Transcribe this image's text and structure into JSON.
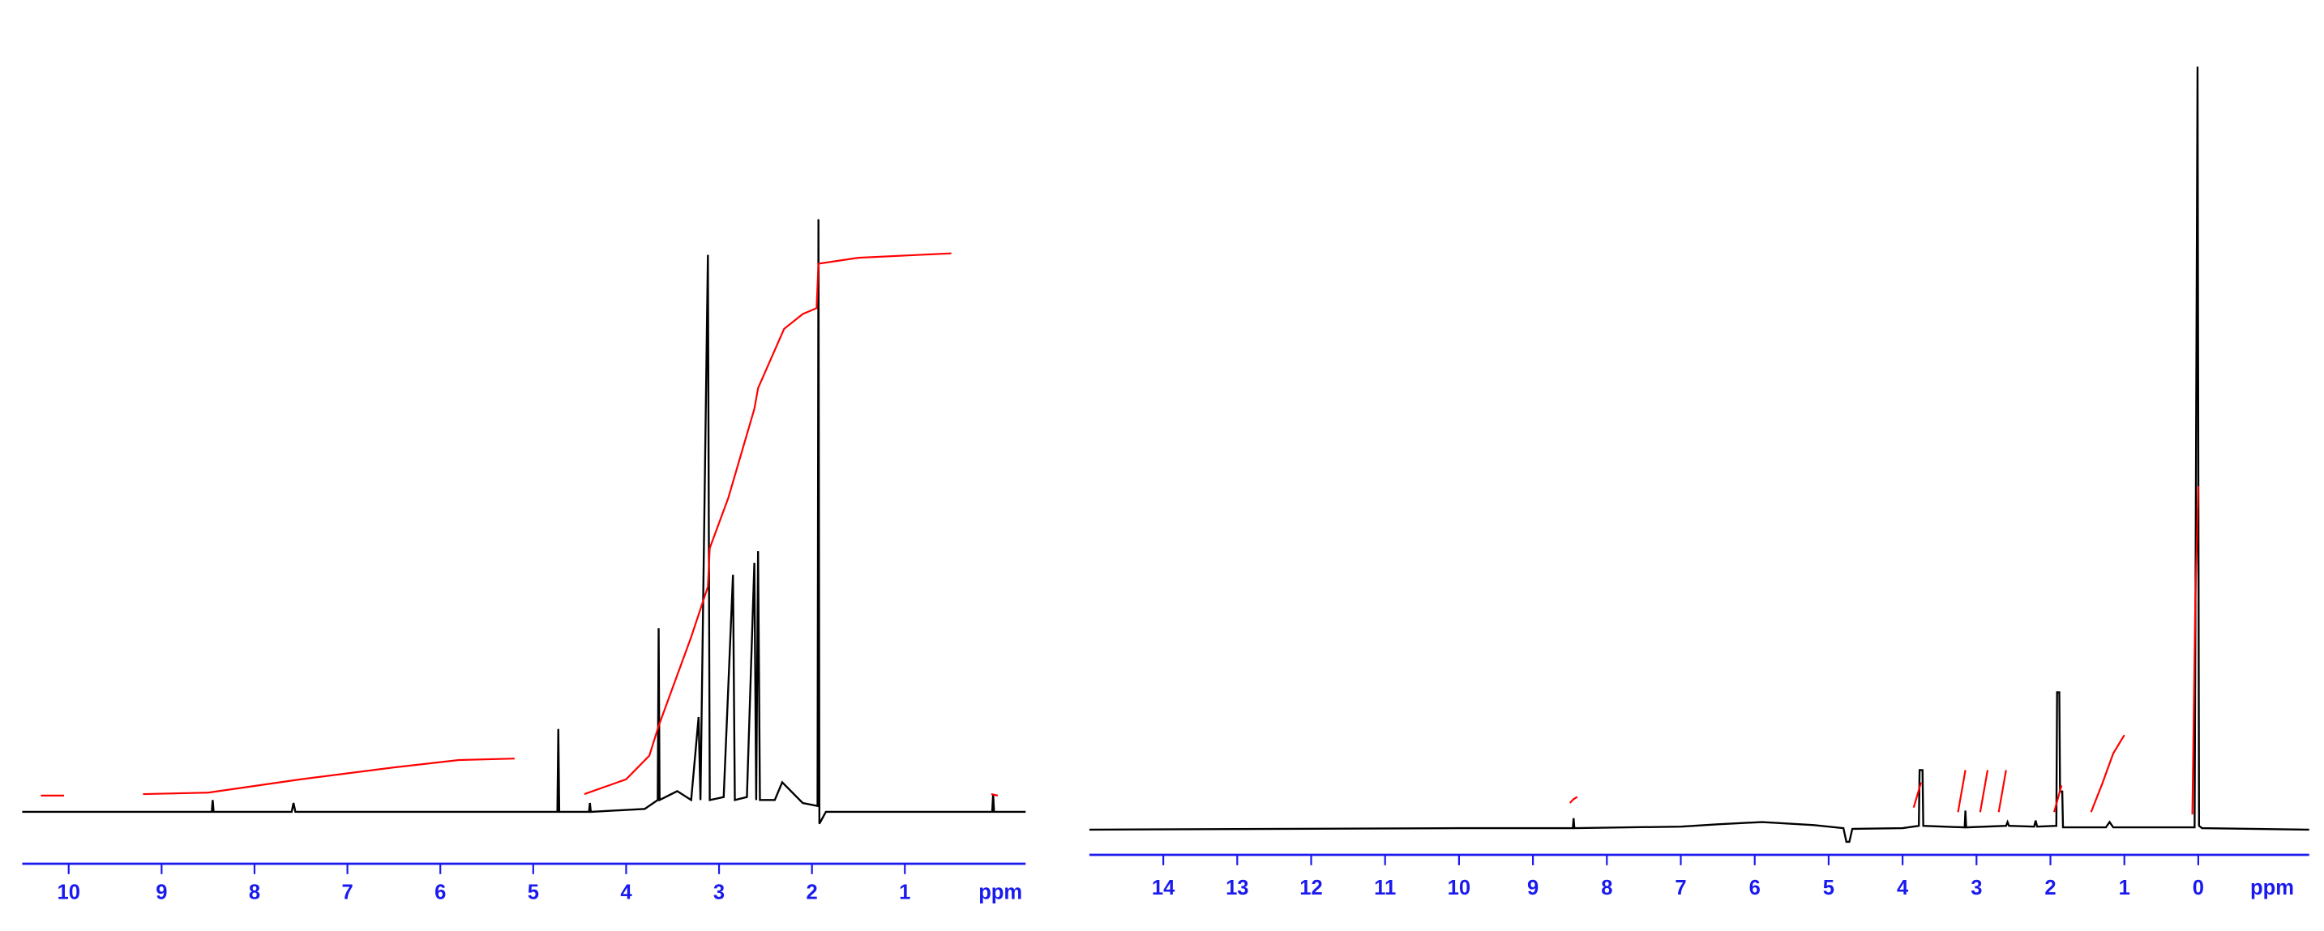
{
  "chart_data": [
    {
      "type": "line",
      "x_label": "ppm",
      "xlim": [
        10.5,
        -0.3
      ],
      "xticks": [
        10,
        9,
        8,
        7,
        6,
        5,
        4,
        3,
        2,
        1
      ],
      "ylim": [
        0,
        100
      ],
      "series": [
        {
          "color": "#000000",
          "x": [
            10.5,
            8.46,
            8.45,
            8.44,
            7.6,
            7.58,
            7.56,
            4.74,
            4.73,
            4.72,
            4.4,
            4.39,
            4.38,
            3.8,
            3.66,
            3.65,
            3.64,
            3.45,
            3.3,
            3.22,
            3.2,
            3.12,
            3.1,
            2.95,
            2.85,
            2.83,
            2.7,
            2.62,
            2.6,
            2.58,
            2.56,
            2.4,
            2.32,
            2.1,
            1.94,
            1.93,
            1.92,
            1.85,
            0.06,
            0.05,
            0.04,
            -0.3
          ],
          "values": [
            0,
            0,
            2,
            0,
            0,
            1.5,
            0,
            0,
            14,
            0,
            0,
            1.5,
            0,
            0.5,
            2,
            31,
            2,
            3.5,
            2,
            16,
            2,
            94,
            2,
            2.5,
            40,
            2,
            2.5,
            42,
            2,
            44,
            2,
            2,
            5,
            1.5,
            1,
            100,
            -2,
            0,
            0,
            3,
            0,
            0
          ]
        },
        {
          "color": "#ff0000",
          "x": [
            10.3,
            10.05,
            9.6,
            9.2,
            8.5,
            7.5,
            6.5,
            5.8,
            5.2,
            4.8,
            4.45,
            4.0,
            3.75,
            3.65,
            3.3,
            3.12,
            3.1,
            2.9,
            2.62,
            2.58,
            2.3,
            2.1,
            1.95,
            1.93,
            1.5,
            0.5,
            0.3,
            0.07,
            0.0
          ],
          "values": [
            2.75,
            2.75,
            null,
            3,
            3.25,
            5.5,
            7.5,
            8.75,
            9,
            null,
            3,
            5.5,
            9.5,
            14.5,
            29.5,
            38,
            44.5,
            53,
            68,
            71.5,
            81.5,
            84,
            85,
            92.5,
            93.5,
            94.25,
            null,
            3,
            2.75
          ]
        }
      ]
    },
    {
      "type": "line",
      "x_label": "ppm",
      "xlim": [
        15,
        -1.5
      ],
      "xticks": [
        14,
        13,
        12,
        11,
        10,
        9,
        8,
        7,
        6,
        5,
        4,
        3,
        2,
        1,
        0
      ],
      "ylim": [
        0,
        100
      ],
      "series": [
        {
          "color": "#000000",
          "x": [
            15,
            10,
            8.46,
            8.45,
            8.44,
            7,
            6.5,
            5.9,
            5.2,
            4.8,
            4.76,
            4.72,
            4.68,
            4.0,
            3.78,
            3.77,
            3.73,
            3.72,
            3.16,
            3.15,
            3.14,
            2.6,
            2.58,
            2.56,
            2.22,
            2.2,
            2.18,
            1.92,
            1.91,
            1.88,
            1.87,
            1.84,
            1.83,
            1.25,
            1.2,
            1.15,
            0.05,
            0.01,
            -0.01,
            -0.05,
            -1.5
          ],
          "values": [
            0,
            0.2,
            0.2,
            1.5,
            0.2,
            0.4,
            0.7,
            1,
            0.6,
            0.2,
            -1.6,
            -1.6,
            0.1,
            0.2,
            0.5,
            7.8,
            7.8,
            0.5,
            0.3,
            2.5,
            0.3,
            0.5,
            1,
            0.5,
            0.4,
            1.2,
            0.4,
            0.5,
            18,
            18,
            5,
            5,
            0.3,
            0.3,
            1,
            0.3,
            0.3,
            100,
            0.5,
            0.2,
            0
          ]
        },
        {
          "color": "#ff0000",
          "x": [
            8.5,
            8.45,
            8.4,
            8.2,
            3.85,
            3.75,
            3.6,
            3.25,
            3.15,
            3.0,
            2.95,
            2.85,
            2.75,
            2.7,
            2.6,
            2.4,
            1.95,
            1.85,
            1.6,
            1.45,
            1.3,
            1.15,
            1.0,
            0.5,
            0.08,
            0.04,
            0.0
          ],
          "values": [
            3.5,
            4,
            4.3,
            null,
            2.9,
            6.2,
            null,
            2.3,
            7.8,
            null,
            2.3,
            7.8,
            null,
            2.3,
            7.8,
            null,
            2.3,
            5.8,
            null,
            2.3,
            6,
            10,
            12.4,
            null,
            2,
            30,
            45
          ]
        }
      ]
    }
  ]
}
